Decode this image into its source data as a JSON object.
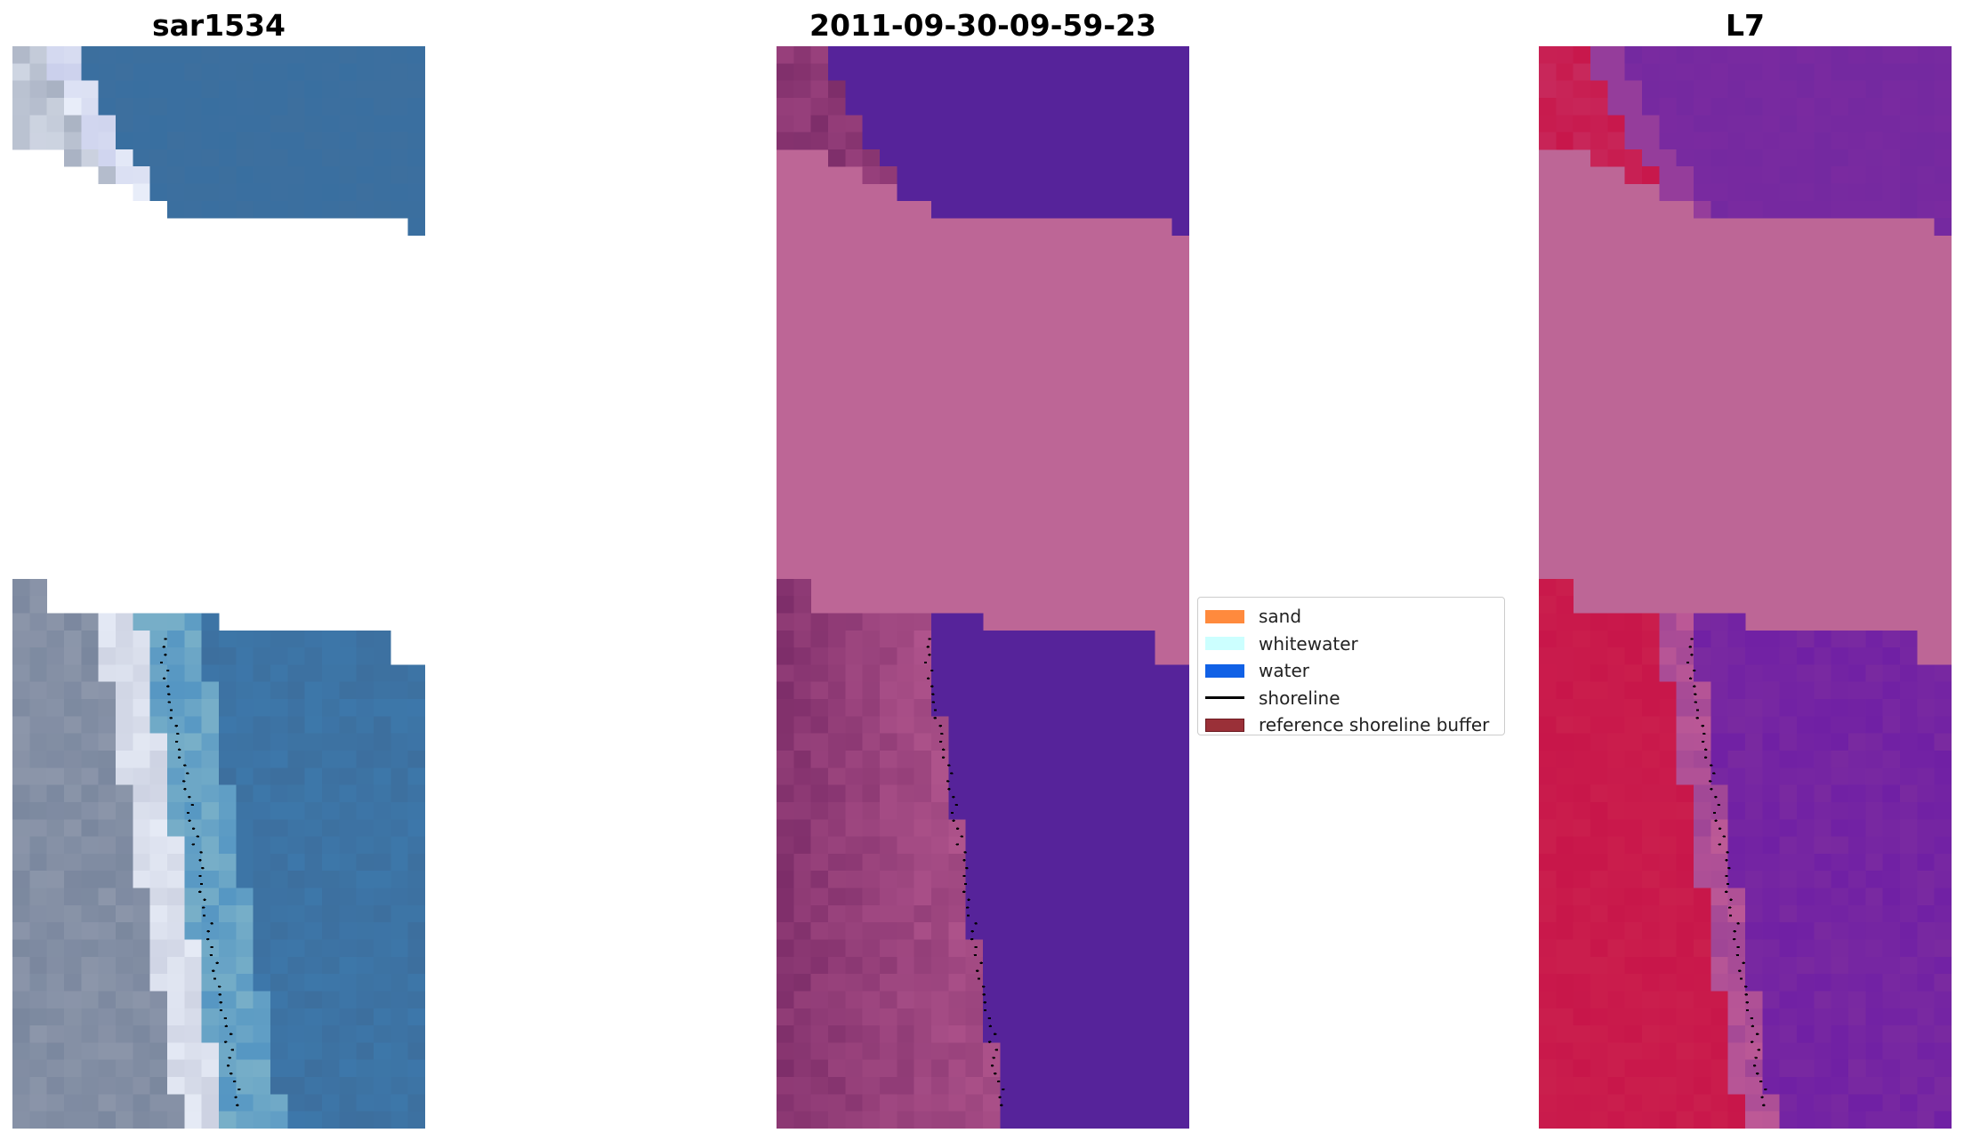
{
  "panels": {
    "left": {
      "title": "sar1534"
    },
    "middle": {
      "title": "2011-09-30-09-59-23"
    },
    "right": {
      "title": "L7"
    }
  },
  "legend": {
    "items": [
      {
        "label": "sand",
        "kind": "patch",
        "color": "#ff8a3d"
      },
      {
        "label": "whitewater",
        "kind": "patch",
        "color": "#ccffff"
      },
      {
        "label": "water",
        "kind": "patch",
        "color": "#1161e6"
      },
      {
        "label": "shoreline",
        "kind": "line",
        "color": "#000000"
      },
      {
        "label": "reference shoreline buffer",
        "kind": "patch",
        "color": "#9a3038",
        "edge": "#6b1a20"
      }
    ]
  },
  "colors": {
    "nodata_fill": "#bd6696",
    "classified_water": "#56239a",
    "index_land": "#c8164a",
    "index_water": "#7a2aa0",
    "ocean_blue": "#3d6f9e",
    "shoreline_points": "#000000"
  }
}
